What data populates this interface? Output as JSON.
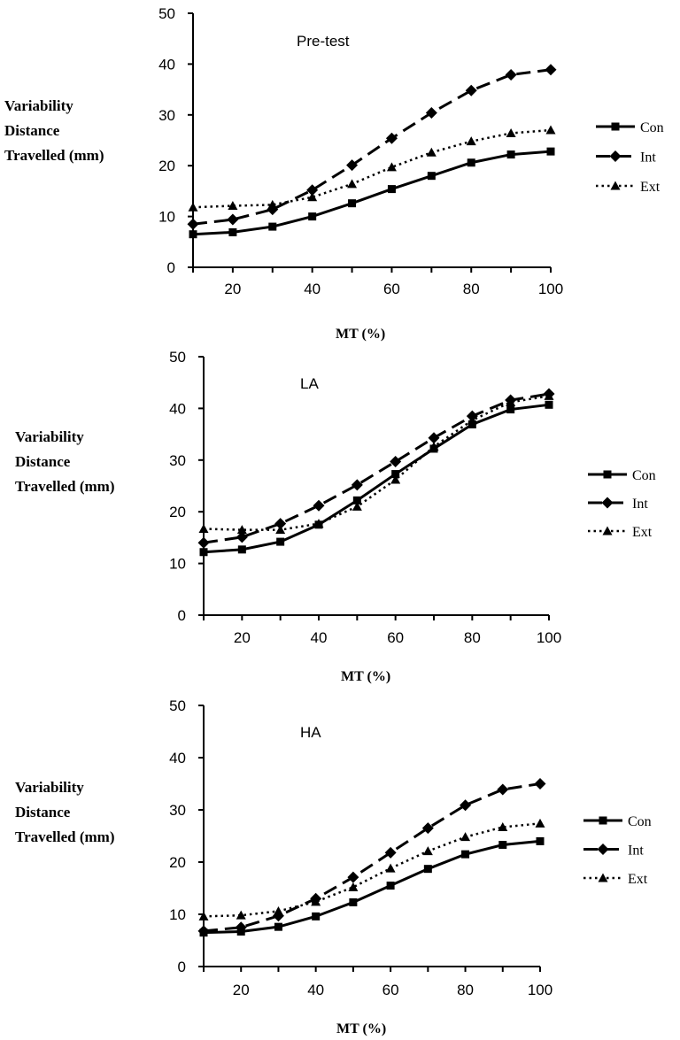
{
  "chart_data": [
    {
      "type": "line",
      "title": "Pre-test",
      "xlabel": "MT (%)",
      "ylabel": [
        "Variability",
        "Distance",
        "Travelled (mm)"
      ],
      "x": [
        10,
        20,
        30,
        40,
        50,
        60,
        70,
        80,
        90,
        100
      ],
      "xticks": [
        20,
        40,
        60,
        80,
        100
      ],
      "yticks": [
        0,
        10,
        20,
        30,
        40,
        50
      ],
      "xlim": [
        10,
        100
      ],
      "ylim": [
        0,
        50
      ],
      "legend_position": "right",
      "series": [
        {
          "name": "Con",
          "style": "solid",
          "marker": "square",
          "values": [
            6.5,
            6.9,
            8.0,
            10.0,
            12.6,
            15.4,
            18.0,
            20.6,
            22.2,
            22.8
          ]
        },
        {
          "name": "Int",
          "style": "dashed",
          "marker": "diamond",
          "values": [
            8.5,
            9.4,
            11.4,
            15.2,
            20.1,
            25.4,
            30.4,
            34.8,
            37.9,
            38.9
          ]
        },
        {
          "name": "Ext",
          "style": "dotted",
          "marker": "triangle",
          "values": [
            11.8,
            12.1,
            12.3,
            13.8,
            16.4,
            19.7,
            22.6,
            24.8,
            26.4,
            27.0
          ]
        }
      ]
    },
    {
      "type": "line",
      "title": "LA",
      "xlabel": "MT (%)",
      "ylabel": [
        "Variability",
        "Distance",
        "Travelled (mm)"
      ],
      "x": [
        10,
        20,
        30,
        40,
        50,
        60,
        70,
        80,
        90,
        100
      ],
      "xticks": [
        20,
        40,
        60,
        80,
        100
      ],
      "yticks": [
        0,
        10,
        20,
        30,
        40,
        50
      ],
      "xlim": [
        10,
        100
      ],
      "ylim": [
        0,
        50
      ],
      "legend_position": "right",
      "series": [
        {
          "name": "Con",
          "style": "solid",
          "marker": "square",
          "values": [
            12.2,
            12.7,
            14.2,
            17.5,
            22.2,
            27.3,
            32.2,
            36.9,
            39.8,
            40.7
          ]
        },
        {
          "name": "Int",
          "style": "dashed",
          "marker": "diamond",
          "values": [
            14.0,
            15.1,
            17.7,
            21.2,
            25.2,
            29.7,
            34.3,
            38.5,
            41.6,
            42.8
          ]
        },
        {
          "name": "Ext",
          "style": "dotted",
          "marker": "triangle",
          "values": [
            16.7,
            16.5,
            16.5,
            17.7,
            21.0,
            26.2,
            32.6,
            37.7,
            41.2,
            42.4
          ]
        }
      ]
    },
    {
      "type": "line",
      "title": "HA",
      "xlabel": "MT (%)",
      "ylabel": [
        "Variability",
        "Distance",
        "Travelled (mm)"
      ],
      "x": [
        10,
        20,
        30,
        40,
        50,
        60,
        70,
        80,
        90,
        100
      ],
      "xticks": [
        20,
        40,
        60,
        80,
        100
      ],
      "yticks": [
        0,
        10,
        20,
        30,
        40,
        50
      ],
      "xlim": [
        10,
        100
      ],
      "ylim": [
        0,
        50
      ],
      "legend_position": "right",
      "series": [
        {
          "name": "Con",
          "style": "solid",
          "marker": "square",
          "values": [
            6.5,
            6.7,
            7.6,
            9.6,
            12.3,
            15.5,
            18.7,
            21.5,
            23.3,
            24.0
          ]
        },
        {
          "name": "Int",
          "style": "dashed",
          "marker": "diamond",
          "values": [
            6.8,
            7.5,
            9.7,
            13.0,
            17.1,
            21.8,
            26.5,
            30.9,
            33.9,
            35.0
          ]
        },
        {
          "name": "Ext",
          "style": "dotted",
          "marker": "triangle",
          "values": [
            9.6,
            9.8,
            10.6,
            12.4,
            15.2,
            18.8,
            22.1,
            24.8,
            26.7,
            27.4
          ]
        }
      ]
    }
  ]
}
